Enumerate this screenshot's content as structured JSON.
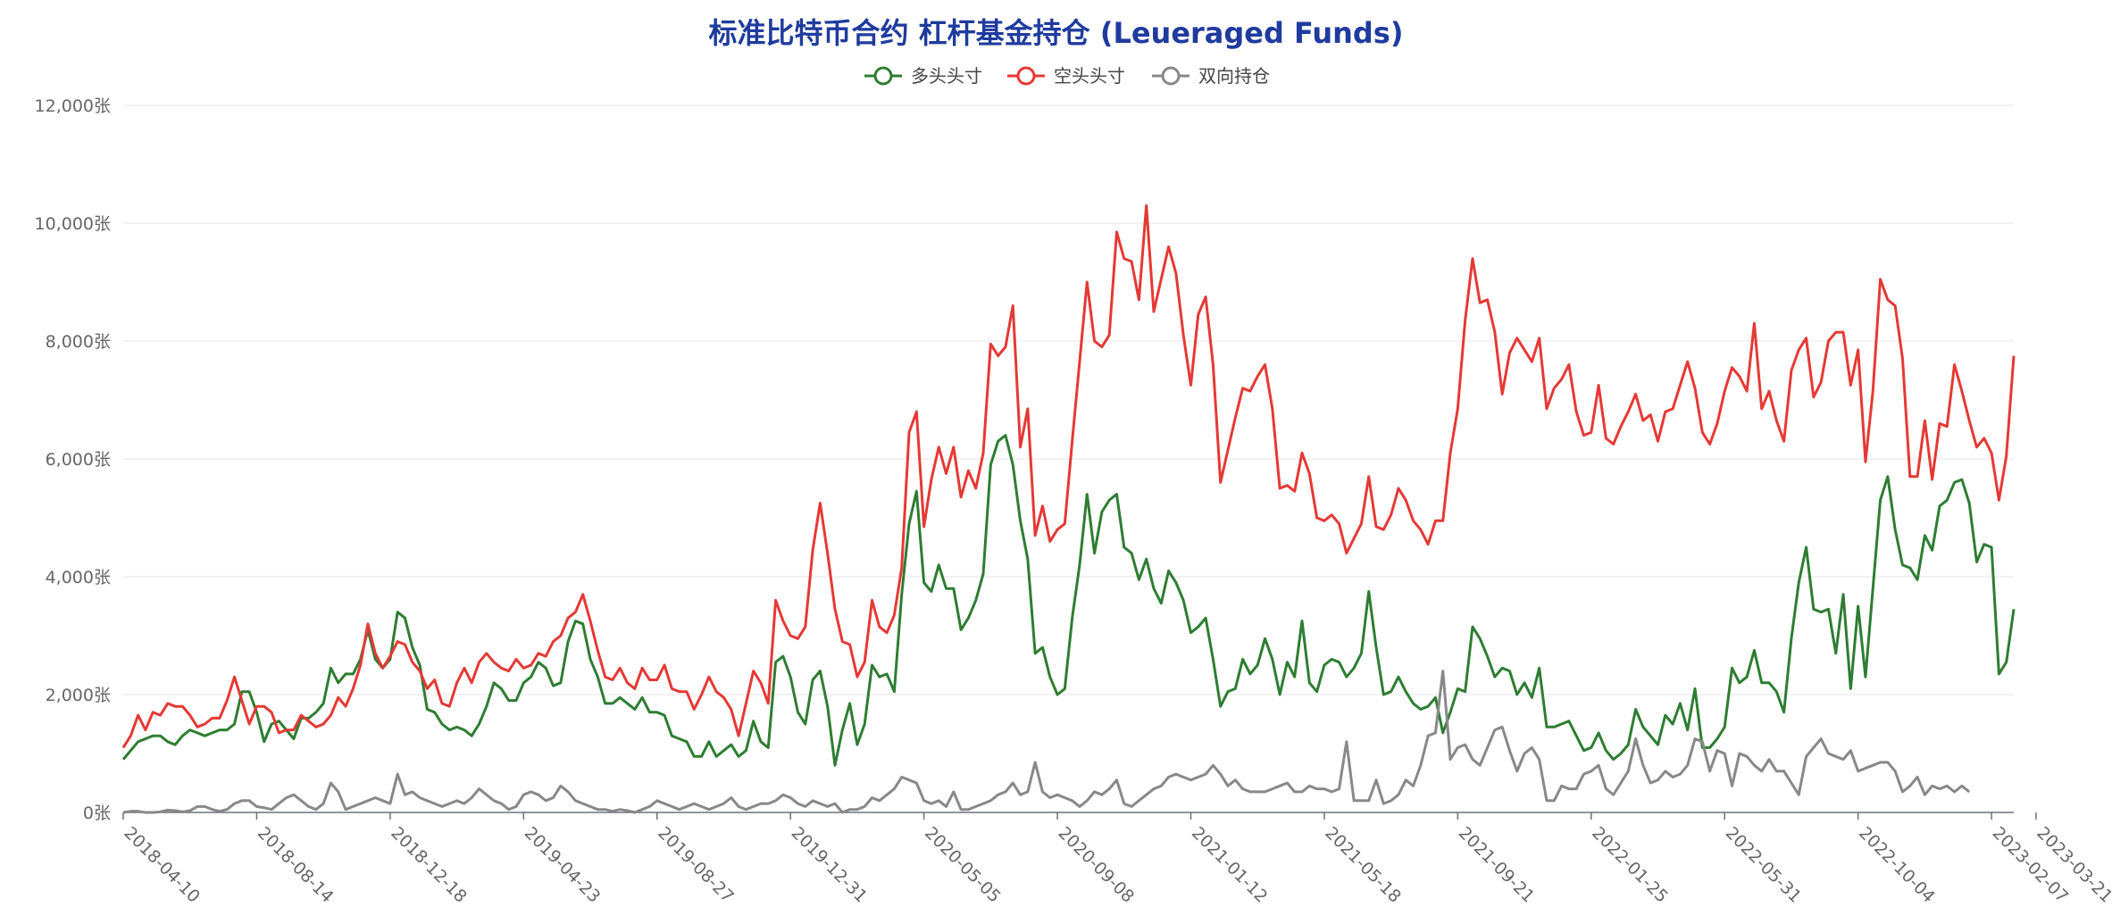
{
  "chart_data": {
    "type": "line",
    "title": "标准比特币合约 杠杆基金持仓 (Leueraged Funds)",
    "y_tick_labels": [
      "0张",
      "2,000张",
      "4,000张",
      "6,000张",
      "8,000张",
      "10,000张",
      "12,000张"
    ],
    "y_ticks": [
      0,
      2000,
      4000,
      6000,
      8000,
      10000,
      12000
    ],
    "ylim": [
      0,
      12000
    ],
    "x_tick_labels": [
      "2018-04-10",
      "2018-08-14",
      "2018-12-18",
      "2019-04-23",
      "2019-08-27",
      "2019-12-31",
      "2020-05-05",
      "2020-09-08",
      "2021-01-12",
      "2021-05-18",
      "2021-09-21",
      "2022-01-25",
      "2022-05-31",
      "2022-10-04",
      "2023-02-07",
      "2023-03-21"
    ],
    "x_tick_index": [
      0,
      18,
      36,
      54,
      72,
      90,
      108,
      126,
      144,
      162,
      180,
      198,
      216,
      234,
      252,
      258
    ],
    "grid": true,
    "legend_position": "top-center",
    "series": [
      {
        "name": "多头头寸",
        "color": "#2e7d32",
        "values": [
          900,
          1050,
          1200,
          1250,
          1300,
          1300,
          1200,
          1150,
          1300,
          1400,
          1350,
          1300,
          1350,
          1400,
          1400,
          1500,
          2050,
          2050,
          1700,
          1200,
          1500,
          1550,
          1400,
          1250,
          1600,
          1600,
          1700,
          1850,
          2450,
          2200,
          2350,
          2350,
          2600,
          3100,
          2600,
          2450,
          2600,
          3400,
          3300,
          2800,
          2500,
          1750,
          1700,
          1500,
          1400,
          1450,
          1400,
          1300,
          1500,
          1800,
          2200,
          2100,
          1900,
          1900,
          2200,
          2300,
          2550,
          2450,
          2150,
          2200,
          2900,
          3250,
          3200,
          2600,
          2300,
          1850,
          1850,
          1950,
          1850,
          1750,
          1950,
          1700,
          1700,
          1650,
          1300,
          1250,
          1200,
          950,
          950,
          1200,
          950,
          1050,
          1150,
          950,
          1050,
          1550,
          1200,
          1100,
          2550,
          2650,
          2300,
          1700,
          1500,
          2250,
          2400,
          1800,
          800,
          1400,
          1850,
          1150,
          1500,
          2500,
          2300,
          2350,
          2050,
          3700,
          4900,
          5450,
          3900,
          3750,
          4200,
          3800,
          3800,
          3100,
          3300,
          3600,
          4050,
          5900,
          6300,
          6400,
          5900,
          4950,
          4300,
          2700,
          2800,
          2300,
          2000,
          2100,
          3300,
          4200,
          5400,
          4400,
          5100,
          5300,
          5400,
          4500,
          4400,
          3950,
          4300,
          3800,
          3550,
          4100,
          3900,
          3600,
          3050,
          3150,
          3300,
          2600,
          1800,
          2050,
          2100,
          2600,
          2350,
          2500,
          2950,
          2600,
          2000,
          2550,
          2300,
          3250,
          2200,
          2050,
          2500,
          2600,
          2550,
          2300,
          2450,
          2700,
          3750,
          2800,
          2000,
          2050,
          2300,
          2050,
          1850,
          1750,
          1800,
          1950,
          1350,
          1700,
          2100,
          2050,
          3150,
          2950,
          2650,
          2300,
          2450,
          2400,
          2000,
          2200,
          1950,
          2450,
          1450,
          1450,
          1500,
          1550,
          1300,
          1050,
          1100,
          1350,
          1050,
          900,
          1000,
          1150,
          1750,
          1450,
          1300,
          1150,
          1650,
          1500,
          1850,
          1400,
          2100,
          1100,
          1100,
          1250,
          1450,
          2450,
          2200,
          2300,
          2750,
          2200,
          2200,
          2050,
          1700,
          2950,
          3900,
          4500,
          3450,
          3400,
          3450,
          2700,
          3700,
          2100,
          3500,
          2300,
          3800,
          5300,
          5700,
          4800,
          4200,
          4150,
          3950,
          4700,
          4450,
          5200,
          5300,
          5600,
          5650,
          5250,
          4250,
          4550,
          4500,
          2350,
          2550,
          3450
        ]
      },
      {
        "name": "空头头寸",
        "color": "#e53935",
        "values": [
          1100,
          1300,
          1650,
          1400,
          1700,
          1650,
          1850,
          1800,
          1800,
          1650,
          1450,
          1500,
          1600,
          1600,
          1900,
          2300,
          1900,
          1500,
          1800,
          1800,
          1700,
          1350,
          1400,
          1400,
          1650,
          1550,
          1450,
          1500,
          1650,
          1950,
          1800,
          2100,
          2500,
          3200,
          2700,
          2450,
          2650,
          2900,
          2850,
          2550,
          2400,
          2100,
          2250,
          1850,
          1800,
          2200,
          2450,
          2200,
          2550,
          2700,
          2550,
          2450,
          2400,
          2600,
          2450,
          2500,
          2700,
          2650,
          2900,
          3000,
          3300,
          3400,
          3700,
          3250,
          2750,
          2300,
          2250,
          2450,
          2200,
          2100,
          2450,
          2250,
          2250,
          2500,
          2100,
          2050,
          2050,
          1750,
          2000,
          2300,
          2050,
          1950,
          1750,
          1300,
          1850,
          2400,
          2200,
          1850,
          3600,
          3250,
          3000,
          2950,
          3150,
          4450,
          5250,
          4400,
          3450,
          2900,
          2850,
          2300,
          2550,
          3600,
          3150,
          3050,
          3350,
          4150,
          6450,
          6800,
          4850,
          5650,
          6200,
          5750,
          6200,
          5350,
          5800,
          5500,
          6100,
          7950,
          7750,
          7900,
          8600,
          6200,
          6850,
          4700,
          5200,
          4600,
          4800,
          4900,
          6300,
          7650,
          9000,
          8000,
          7900,
          8100,
          9850,
          9400,
          9350,
          8700,
          10300,
          8500,
          9050,
          9600,
          9150,
          8100,
          7250,
          8450,
          8750,
          7600,
          5600,
          6150,
          6700,
          7200,
          7150,
          7400,
          7600,
          6850,
          5500,
          5550,
          5450,
          6100,
          5750,
          5000,
          4950,
          5050,
          4900,
          4400,
          4650,
          4900,
          5700,
          4850,
          4800,
          5050,
          5500,
          5300,
          4950,
          4800,
          4550,
          4950,
          4950,
          6100,
          6850,
          8350,
          9400,
          8650,
          8700,
          8150,
          7100,
          7800,
          8050,
          7850,
          7650,
          8050,
          6850,
          7200,
          7350,
          7600,
          6800,
          6400,
          6450,
          7250,
          6350,
          6250,
          6550,
          6800,
          7100,
          6650,
          6750,
          6300,
          6800,
          6850,
          7250,
          7650,
          7200,
          6450,
          6250,
          6600,
          7150,
          7550,
          7400,
          7150,
          8300,
          6850,
          7150,
          6650,
          6300,
          7500,
          7850,
          8050,
          7050,
          7300,
          8000,
          8150,
          8150,
          7250,
          7850,
          5950,
          7150,
          9050,
          8700,
          8600,
          7700,
          5700,
          5700,
          6650,
          5650,
          6600,
          6550,
          7600,
          7150,
          6650,
          6200,
          6350,
          6100,
          5300,
          6050,
          7750
        ]
      },
      {
        "name": "双向持仓",
        "color": "#888888",
        "values": [
          0,
          20,
          20,
          0,
          0,
          10,
          40,
          30,
          10,
          30,
          100,
          100,
          50,
          20,
          50,
          150,
          200,
          200,
          100,
          80,
          50,
          150,
          250,
          300,
          200,
          100,
          50,
          150,
          500,
          350,
          50,
          100,
          150,
          200,
          250,
          200,
          150,
          650,
          300,
          350,
          250,
          200,
          150,
          100,
          150,
          200,
          150,
          250,
          400,
          300,
          200,
          150,
          50,
          100,
          300,
          350,
          300,
          200,
          250,
          450,
          350,
          200,
          150,
          100,
          50,
          50,
          20,
          50,
          30,
          0,
          50,
          100,
          200,
          150,
          100,
          50,
          100,
          150,
          100,
          50,
          100,
          150,
          250,
          100,
          50,
          100,
          150,
          150,
          200,
          300,
          250,
          150,
          100,
          200,
          150,
          100,
          150,
          0,
          50,
          50,
          100,
          250,
          200,
          300,
          400,
          600,
          550,
          500,
          200,
          150,
          200,
          100,
          350,
          50,
          50,
          100,
          150,
          200,
          300,
          350,
          500,
          300,
          350,
          850,
          350,
          250,
          300,
          250,
          200,
          100,
          200,
          350,
          300,
          400,
          550,
          150,
          100,
          200,
          300,
          400,
          450,
          600,
          650,
          600,
          550,
          600,
          650,
          800,
          650,
          450,
          550,
          400,
          350,
          350,
          350,
          400,
          450,
          500,
          350,
          350,
          450,
          400,
          400,
          350,
          400,
          1200,
          200,
          200,
          200,
          550,
          150,
          200,
          300,
          550,
          450,
          800,
          1300,
          1350,
          2400,
          900,
          1100,
          1150,
          900,
          800,
          1100,
          1400,
          1450,
          1050,
          700,
          1000,
          1100,
          900,
          200,
          200,
          450,
          400,
          400,
          650,
          700,
          800,
          400,
          300,
          500,
          700,
          1250,
          800,
          500,
          550,
          700,
          600,
          650,
          800,
          1250,
          1200,
          700,
          1050,
          1000,
          450,
          1000,
          950,
          800,
          700,
          900,
          700,
          700,
          500,
          300,
          950,
          1100,
          1250,
          1000,
          950,
          900,
          1050,
          700,
          750,
          800,
          850,
          850,
          700,
          350,
          450,
          600,
          300,
          450,
          400,
          450,
          350,
          450,
          350
        ]
      }
    ]
  }
}
